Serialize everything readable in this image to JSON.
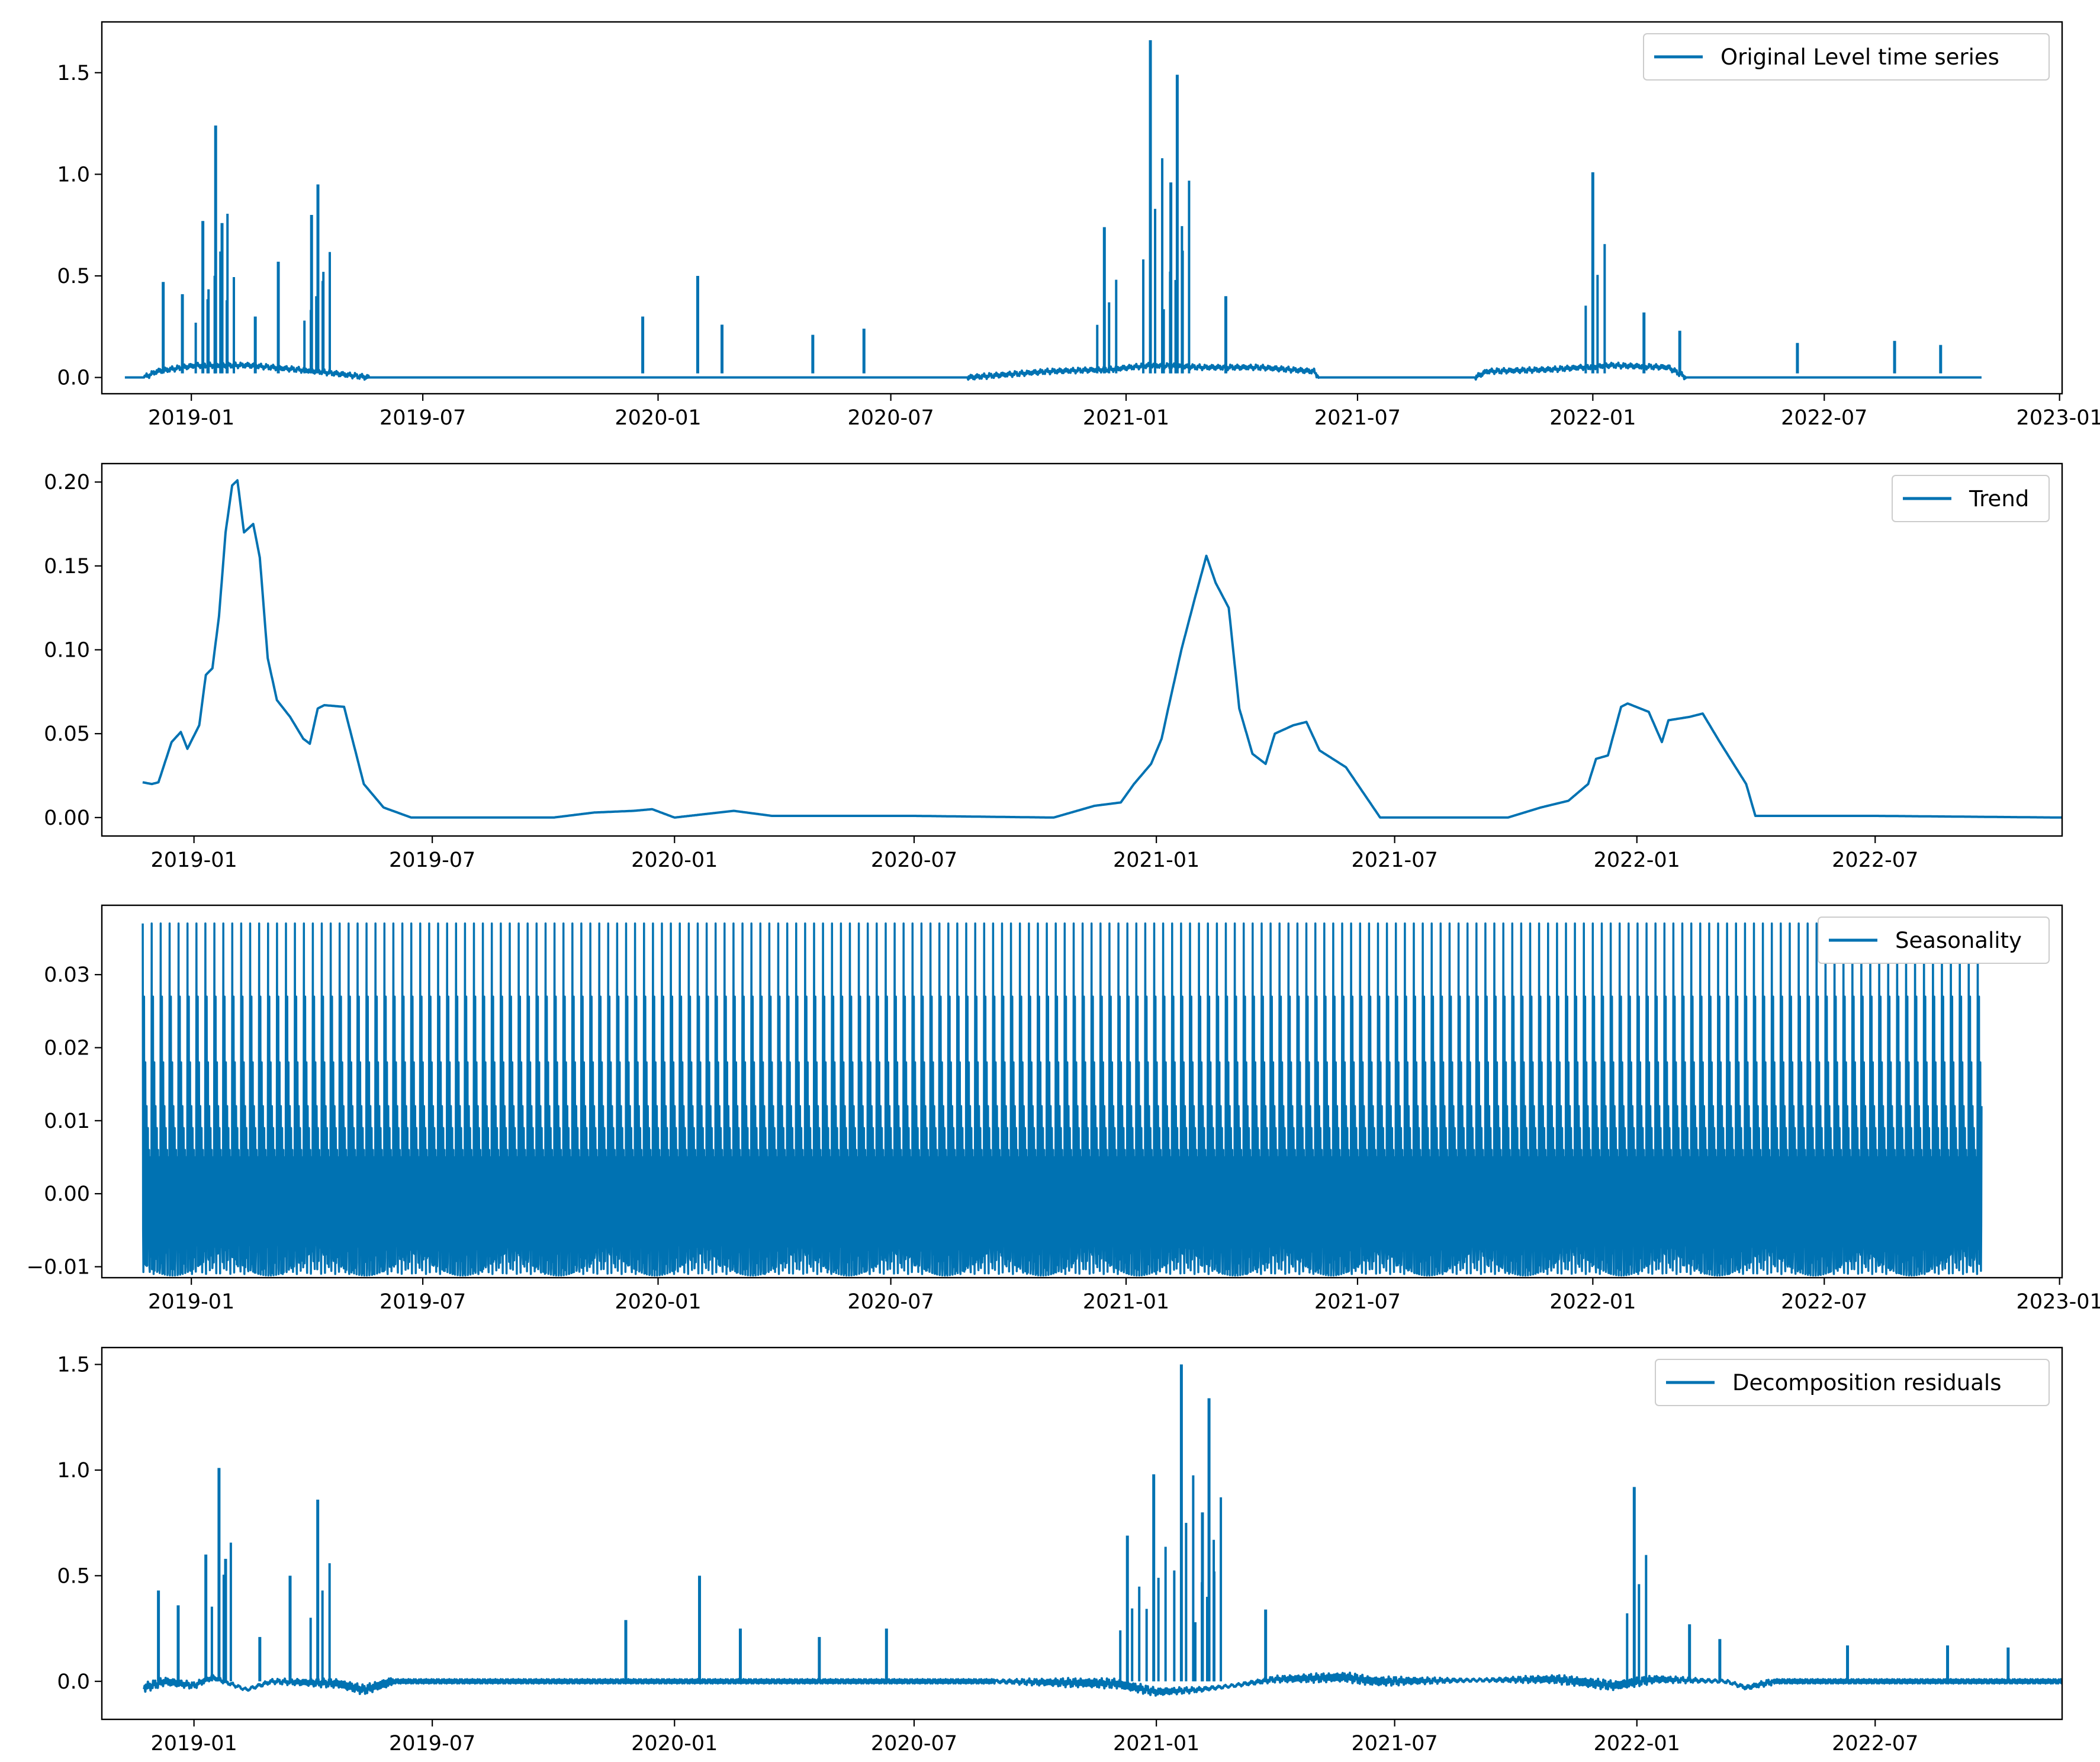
{
  "chart_data": [
    {
      "type": "line",
      "series_name": "Original Level time series",
      "legend": "top-right",
      "color": "#0072b2",
      "x_ticks": [
        "2019-01",
        "2019-07",
        "2020-01",
        "2020-07",
        "2021-01",
        "2021-07",
        "2022-01",
        "2022-07",
        "2023-01"
      ],
      "x_tick_dates": [
        "2019-01-01",
        "2019-07-01",
        "2020-01-01",
        "2020-07-01",
        "2021-01-01",
        "2021-07-01",
        "2022-01-01",
        "2022-07-01",
        "2023-01-01"
      ],
      "x_range": [
        "2018-10-23",
        "2023-01-03"
      ],
      "y_ticks": [
        "0.0",
        "0.5",
        "1.0",
        "1.5"
      ],
      "y_tick_values": [
        0,
        0.5,
        1.0,
        1.5
      ],
      "ylim": [
        -0.08,
        1.75
      ],
      "baseline": [
        0,
        0.02,
        0.03,
        0.02,
        0,
        0,
        0.02,
        0.04,
        0.03
      ],
      "points": [
        [
          "2018-11-10",
          0.0
        ],
        [
          "2018-11-25",
          0.0
        ],
        [
          "2018-12-05",
          0.03
        ],
        [
          "2019-01-05",
          0.06
        ],
        [
          "2019-02-15",
          0.06
        ],
        [
          "2019-04-10",
          0.03
        ],
        [
          "2019-05-20",
          0.0
        ],
        [
          "2019-09-15",
          0.0
        ],
        [
          "2019-11-01",
          0.0
        ],
        [
          "2020-08-30",
          0.0
        ],
        [
          "2020-11-01",
          0.03
        ],
        [
          "2020-12-20",
          0.04
        ],
        [
          "2021-01-20",
          0.06
        ],
        [
          "2021-03-01",
          0.05
        ],
        [
          "2021-04-15",
          0.05
        ],
        [
          "2021-05-28",
          0.03
        ],
        [
          "2021-06-01",
          0.0
        ],
        [
          "2021-10-01",
          0.0
        ],
        [
          "2021-10-10",
          0.03
        ],
        [
          "2021-12-01",
          0.04
        ],
        [
          "2022-01-15",
          0.06
        ],
        [
          "2022-03-01",
          0.05
        ],
        [
          "2022-03-15",
          0.0
        ],
        [
          "2022-11-01",
          0.0
        ]
      ],
      "spikes": [
        [
          "2018-12-10",
          0.47
        ],
        [
          "2018-12-25",
          0.41
        ],
        [
          "2019-01-10",
          0.77
        ],
        [
          "2019-01-20",
          1.24
        ],
        [
          "2019-01-25",
          0.76
        ],
        [
          "2019-02-20",
          0.3
        ],
        [
          "2019-03-10",
          0.57
        ],
        [
          "2019-04-05",
          0.8
        ],
        [
          "2019-04-10",
          0.95
        ],
        [
          "2019-12-20",
          0.3
        ],
        [
          "2020-02-01",
          0.5
        ],
        [
          "2020-02-20",
          0.26
        ],
        [
          "2020-05-01",
          0.21
        ],
        [
          "2020-06-10",
          0.24
        ],
        [
          "2020-12-15",
          0.74
        ],
        [
          "2021-01-20",
          1.66
        ],
        [
          "2021-02-05",
          0.96
        ],
        [
          "2021-02-10",
          1.49
        ],
        [
          "2021-03-20",
          0.4
        ],
        [
          "2022-01-01",
          1.01
        ],
        [
          "2022-02-10",
          0.32
        ],
        [
          "2022-03-10",
          0.23
        ],
        [
          "2022-06-10",
          0.17
        ],
        [
          "2022-08-25",
          0.18
        ],
        [
          "2022-09-30",
          0.16
        ]
      ]
    },
    {
      "type": "line",
      "series_name": "Trend",
      "legend": "top-right",
      "color": "#0072b2",
      "x_ticks": [
        "2019-01",
        "2019-07",
        "2020-01",
        "2020-07",
        "2021-01",
        "2021-07",
        "2022-01",
        "2022-07"
      ],
      "x_tick_dates": [
        "2019-01-01",
        "2019-07-01",
        "2020-01-01",
        "2020-07-01",
        "2021-01-01",
        "2021-07-01",
        "2022-01-01",
        "2022-07-01"
      ],
      "x_range": [
        "2018-10-23",
        "2022-11-20"
      ],
      "y_ticks": [
        "0.00",
        "0.05",
        "0.10",
        "0.15",
        "0.20"
      ],
      "y_tick_values": [
        0,
        0.05,
        0.1,
        0.15,
        0.2
      ],
      "ylim": [
        -0.011,
        0.211
      ],
      "points": [
        [
          "2018-11-23",
          0.021
        ],
        [
          "2018-11-30",
          0.02
        ],
        [
          "2018-12-05",
          0.021
        ],
        [
          "2018-12-15",
          0.045
        ],
        [
          "2018-12-22",
          0.051
        ],
        [
          "2018-12-27",
          0.041
        ],
        [
          "2019-01-05",
          0.055
        ],
        [
          "2019-01-10",
          0.085
        ],
        [
          "2019-01-15",
          0.089
        ],
        [
          "2019-01-20",
          0.12
        ],
        [
          "2019-01-25",
          0.17
        ],
        [
          "2019-01-30",
          0.198
        ],
        [
          "2019-02-03",
          0.201
        ],
        [
          "2019-02-08",
          0.17
        ],
        [
          "2019-02-15",
          0.175
        ],
        [
          "2019-02-20",
          0.155
        ],
        [
          "2019-02-26",
          0.095
        ],
        [
          "2019-03-05",
          0.07
        ],
        [
          "2019-03-15",
          0.06
        ],
        [
          "2019-03-25",
          0.047
        ],
        [
          "2019-03-30",
          0.044
        ],
        [
          "2019-04-05",
          0.065
        ],
        [
          "2019-04-10",
          0.067
        ],
        [
          "2019-04-25",
          0.066
        ],
        [
          "2019-05-10",
          0.02
        ],
        [
          "2019-05-25",
          0.006
        ],
        [
          "2019-06-15",
          0.0
        ],
        [
          "2019-10-01",
          0.0
        ],
        [
          "2019-11-01",
          0.003
        ],
        [
          "2019-12-01",
          0.004
        ],
        [
          "2019-12-15",
          0.005
        ],
        [
          "2020-01-01",
          0.0
        ],
        [
          "2020-02-15",
          0.004
        ],
        [
          "2020-03-15",
          0.001
        ],
        [
          "2020-05-01",
          0.001
        ],
        [
          "2020-07-01",
          0.001
        ],
        [
          "2020-10-15",
          0.0
        ],
        [
          "2020-11-15",
          0.007
        ],
        [
          "2020-12-05",
          0.009
        ],
        [
          "2020-12-15",
          0.02
        ],
        [
          "2020-12-28",
          0.032
        ],
        [
          "2021-01-05",
          0.047
        ],
        [
          "2021-01-10",
          0.065
        ],
        [
          "2021-01-20",
          0.1
        ],
        [
          "2021-01-30",
          0.13
        ],
        [
          "2021-02-08",
          0.156
        ],
        [
          "2021-02-15",
          0.14
        ],
        [
          "2021-02-25",
          0.125
        ],
        [
          "2021-03-05",
          0.065
        ],
        [
          "2021-03-15",
          0.038
        ],
        [
          "2021-03-25",
          0.032
        ],
        [
          "2021-04-01",
          0.05
        ],
        [
          "2021-04-15",
          0.055
        ],
        [
          "2021-04-25",
          0.057
        ],
        [
          "2021-05-05",
          0.04
        ],
        [
          "2021-05-25",
          0.03
        ],
        [
          "2021-06-20",
          0.0
        ],
        [
          "2021-09-25",
          0.0
        ],
        [
          "2021-10-20",
          0.006
        ],
        [
          "2021-11-10",
          0.01
        ],
        [
          "2021-11-25",
          0.02
        ],
        [
          "2021-12-01",
          0.035
        ],
        [
          "2021-12-10",
          0.037
        ],
        [
          "2021-12-20",
          0.066
        ],
        [
          "2021-12-25",
          0.068
        ],
        [
          "2022-01-10",
          0.063
        ],
        [
          "2022-01-20",
          0.045
        ],
        [
          "2022-01-25",
          0.058
        ],
        [
          "2022-02-10",
          0.06
        ],
        [
          "2022-02-20",
          0.062
        ],
        [
          "2022-03-05",
          0.045
        ],
        [
          "2022-03-25",
          0.02
        ],
        [
          "2022-04-01",
          0.001
        ],
        [
          "2022-07-01",
          0.001
        ],
        [
          "2022-11-20",
          0.0
        ]
      ]
    },
    {
      "type": "line",
      "series_name": "Seasonality",
      "legend": "top-right",
      "color": "#0072b2",
      "x_ticks": [
        "2019-01",
        "2019-07",
        "2020-01",
        "2020-07",
        "2021-01",
        "2021-07",
        "2022-01",
        "2022-07",
        "2023-01"
      ],
      "x_tick_dates": [
        "2019-01-01",
        "2019-07-01",
        "2020-01-01",
        "2020-07-01",
        "2021-01-01",
        "2021-07-01",
        "2022-01-01",
        "2022-07-01",
        "2023-01-01"
      ],
      "x_range": [
        "2018-10-23",
        "2023-01-03"
      ],
      "y_ticks": [
        "−0.01",
        "0.00",
        "0.01",
        "0.02",
        "0.03"
      ],
      "y_tick_values": [
        -0.01,
        0,
        0.01,
        0.02,
        0.03
      ],
      "ylim": [
        -0.0115,
        0.0395
      ],
      "period_days": 7,
      "max": 0.037,
      "min": -0.009,
      "start": "2018-11-24",
      "end": "2022-11-01"
    },
    {
      "type": "line",
      "series_name": "Decomposition residuals",
      "legend": "top-right",
      "color": "#0072b2",
      "x_ticks": [
        "2019-01",
        "2019-07",
        "2020-01",
        "2020-07",
        "2021-01",
        "2021-07",
        "2022-01",
        "2022-07"
      ],
      "x_tick_dates": [
        "2019-01-01",
        "2019-07-01",
        "2020-01-01",
        "2020-07-01",
        "2021-01-01",
        "2021-07-01",
        "2022-01-01",
        "2022-07-01"
      ],
      "x_range": [
        "2018-10-23",
        "2022-11-20"
      ],
      "y_ticks": [
        "0.0",
        "0.5",
        "1.0",
        "1.5"
      ],
      "y_tick_values": [
        0,
        0.5,
        1.0,
        1.5
      ],
      "ylim": [
        -0.18,
        1.58
      ],
      "points": [
        [
          "2018-11-24",
          -0.03
        ],
        [
          "2018-12-10",
          0.0
        ],
        [
          "2019-01-01",
          -0.02
        ],
        [
          "2019-01-15",
          0.02
        ],
        [
          "2019-02-10",
          -0.04
        ],
        [
          "2019-03-01",
          0.0
        ],
        [
          "2019-04-20",
          -0.01
        ],
        [
          "2019-05-10",
          -0.04
        ],
        [
          "2019-06-01",
          0.0
        ],
        [
          "2019-09-01",
          0.0
        ],
        [
          "2020-09-01",
          0.0
        ],
        [
          "2020-12-01",
          -0.01
        ],
        [
          "2021-01-01",
          -0.05
        ],
        [
          "2021-02-01",
          -0.04
        ],
        [
          "2021-03-01",
          -0.02
        ],
        [
          "2021-04-01",
          0.01
        ],
        [
          "2021-05-25",
          0.02
        ],
        [
          "2021-06-15",
          0.0
        ],
        [
          "2021-11-01",
          0.01
        ],
        [
          "2021-12-15",
          -0.02
        ],
        [
          "2022-01-15",
          0.01
        ],
        [
          "2022-03-10",
          0.0
        ],
        [
          "2022-03-25",
          -0.03
        ],
        [
          "2022-04-15",
          0.0
        ],
        [
          "2022-11-20",
          0.0
        ]
      ],
      "spikes": [
        [
          "2018-12-05",
          0.43
        ],
        [
          "2018-12-20",
          0.36
        ],
        [
          "2019-01-10",
          0.6
        ],
        [
          "2019-01-20",
          1.01
        ],
        [
          "2019-01-25",
          0.58
        ],
        [
          "2019-02-20",
          0.21
        ],
        [
          "2019-03-15",
          0.5
        ],
        [
          "2019-04-05",
          0.86
        ],
        [
          "2019-11-25",
          0.29
        ],
        [
          "2020-01-20",
          0.5
        ],
        [
          "2020-02-20",
          0.25
        ],
        [
          "2020-04-20",
          0.21
        ],
        [
          "2020-06-10",
          0.25
        ],
        [
          "2020-12-10",
          0.69
        ],
        [
          "2020-12-30",
          0.98
        ],
        [
          "2021-01-20",
          1.5
        ],
        [
          "2021-02-05",
          0.8
        ],
        [
          "2021-02-10",
          1.34
        ],
        [
          "2021-03-25",
          0.34
        ],
        [
          "2021-12-30",
          0.92
        ],
        [
          "2022-02-10",
          0.27
        ],
        [
          "2022-03-05",
          0.2
        ],
        [
          "2022-06-10",
          0.17
        ],
        [
          "2022-08-25",
          0.17
        ],
        [
          "2022-10-10",
          0.16
        ]
      ]
    }
  ]
}
